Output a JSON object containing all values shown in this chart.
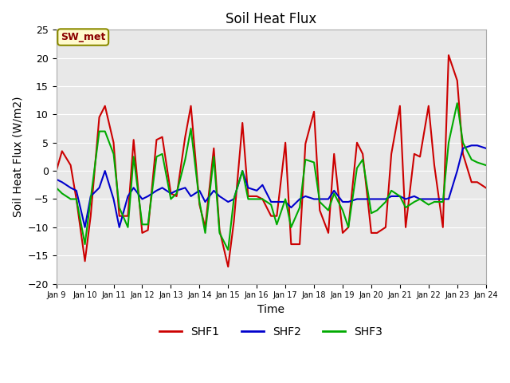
{
  "title": "Soil Heat Flux",
  "xlabel": "Time",
  "ylabel": "Soil Heat Flux (W/m2)",
  "ylim": [
    -20,
    25
  ],
  "annotation": "SW_met",
  "series": {
    "SHF1": {
      "color": "#CC0000",
      "x": [
        9.0,
        9.2,
        9.5,
        9.7,
        10.0,
        10.2,
        10.5,
        10.7,
        11.0,
        11.2,
        11.5,
        11.7,
        12.0,
        12.2,
        12.5,
        12.7,
        13.0,
        13.2,
        13.5,
        13.7,
        14.0,
        14.2,
        14.5,
        14.7,
        15.0,
        15.2,
        15.5,
        15.7,
        16.0,
        16.2,
        16.5,
        16.7,
        17.0,
        17.2,
        17.5,
        17.7,
        18.0,
        18.2,
        18.5,
        18.7,
        19.0,
        19.2,
        19.5,
        19.7,
        20.0,
        20.2,
        20.5,
        20.7,
        21.0,
        21.2,
        21.5,
        21.7,
        22.0,
        22.2,
        22.5,
        22.7,
        23.0,
        23.2,
        23.5,
        23.7,
        24.0
      ],
      "y": [
        0,
        3.5,
        1,
        -5,
        -16,
        -8,
        9.5,
        11.5,
        5,
        -8,
        -8,
        5.5,
        -11,
        -10.5,
        5.5,
        6,
        -4,
        -4.5,
        6,
        11.5,
        -6,
        -10,
        4,
        -10.5,
        -17,
        -9,
        8.5,
        -4.5,
        -4.5,
        -5,
        -8,
        -8,
        5,
        -13,
        -13,
        4.8,
        10.5,
        -7,
        -11,
        3,
        -11,
        -10,
        5,
        3,
        -11,
        -11,
        -10,
        3,
        11.5,
        -10,
        3,
        2.5,
        11.5,
        1,
        -10,
        20.5,
        16,
        3,
        -2,
        -2,
        -3
      ]
    },
    "SHF2": {
      "color": "#0000CC",
      "x": [
        9.0,
        9.2,
        9.5,
        9.7,
        10.0,
        10.2,
        10.5,
        10.7,
        11.0,
        11.2,
        11.5,
        11.7,
        12.0,
        12.2,
        12.5,
        12.7,
        13.0,
        13.2,
        13.5,
        13.7,
        14.0,
        14.2,
        14.5,
        14.7,
        15.0,
        15.2,
        15.5,
        15.7,
        16.0,
        16.2,
        16.5,
        16.7,
        17.0,
        17.2,
        17.5,
        17.7,
        18.0,
        18.2,
        18.5,
        18.7,
        19.0,
        19.2,
        19.5,
        19.7,
        20.0,
        20.2,
        20.5,
        20.7,
        21.0,
        21.2,
        21.5,
        21.7,
        22.0,
        22.2,
        22.5,
        22.7,
        23.0,
        23.2,
        23.5,
        23.7,
        24.0
      ],
      "y": [
        -1.5,
        -2,
        -3,
        -3.5,
        -10,
        -4.5,
        -3,
        0,
        -5,
        -10,
        -4.5,
        -3,
        -5,
        -4.5,
        -3.5,
        -3,
        -4,
        -3.5,
        -3,
        -4.5,
        -3.5,
        -5.5,
        -3.5,
        -4.5,
        -5.5,
        -5,
        0,
        -3,
        -3.5,
        -2.5,
        -5.5,
        -5.5,
        -5.5,
        -6.5,
        -5,
        -4.5,
        -5,
        -5,
        -5,
        -3.5,
        -5.5,
        -5.5,
        -5,
        -5,
        -5,
        -5,
        -5,
        -4.5,
        -4.5,
        -5,
        -4.5,
        -5,
        -5,
        -5,
        -5,
        -5,
        0,
        4,
        4.5,
        4.5,
        4
      ]
    },
    "SHF3": {
      "color": "#00AA00",
      "x": [
        9.0,
        9.2,
        9.5,
        9.7,
        10.0,
        10.2,
        10.5,
        10.7,
        11.0,
        11.2,
        11.5,
        11.7,
        12.0,
        12.2,
        12.5,
        12.7,
        13.0,
        13.2,
        13.5,
        13.7,
        14.0,
        14.2,
        14.5,
        14.7,
        15.0,
        15.2,
        15.5,
        15.7,
        16.0,
        16.2,
        16.5,
        16.7,
        17.0,
        17.2,
        17.5,
        17.7,
        18.0,
        18.2,
        18.5,
        18.7,
        19.0,
        19.2,
        19.5,
        19.7,
        20.0,
        20.2,
        20.5,
        20.7,
        21.0,
        21.2,
        21.5,
        21.7,
        22.0,
        22.2,
        22.5,
        22.7,
        23.0,
        23.2,
        23.5,
        23.7,
        24.0
      ],
      "y": [
        -3,
        -4,
        -5,
        -5,
        -13,
        -5,
        7,
        7,
        3,
        -6.5,
        -10,
        2.5,
        -9.5,
        -9.5,
        2.5,
        3,
        -5,
        -4,
        2,
        7.5,
        -5.5,
        -11,
        2.5,
        -11,
        -14,
        -5,
        0,
        -5,
        -5,
        -5,
        -6,
        -9.5,
        -5,
        -10,
        -6.5,
        2,
        1.5,
        -5.5,
        -7,
        -4,
        -7,
        -10,
        0.5,
        2,
        -7.5,
        -7,
        -5.5,
        -3.5,
        -4.5,
        -6.5,
        -5.5,
        -5,
        -6,
        -5.5,
        -5.5,
        5,
        12,
        5,
        2,
        1.5,
        1
      ]
    }
  },
  "xtick_labels": [
    "Jan 9",
    "Jan 10",
    "Jan 11",
    "Jan 12",
    "Jan 13",
    "Jan 14",
    "Jan 15",
    "Jan 16",
    "Jan 17",
    "Jan 18",
    "Jan 19",
    "Jan 20",
    "Jan 21",
    "Jan 22",
    "Jan 23",
    "Jan 24"
  ],
  "xtick_positions": [
    9,
    10,
    11,
    12,
    13,
    14,
    15,
    16,
    17,
    18,
    19,
    20,
    21,
    22,
    23,
    24
  ],
  "ytick_positions": [
    -20,
    -15,
    -10,
    -5,
    0,
    5,
    10,
    15,
    20,
    25
  ],
  "background_color": "#E8E8E8",
  "plot_bg_color": "#E8E8E8",
  "linewidth": 1.5,
  "legend_entries": [
    "SHF1",
    "SHF2",
    "SHF3"
  ],
  "legend_colors": [
    "#CC0000",
    "#0000CC",
    "#00AA00"
  ]
}
